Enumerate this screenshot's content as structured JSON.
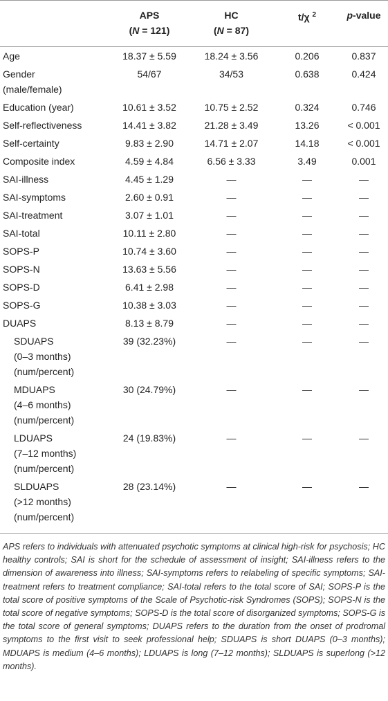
{
  "header": {
    "aps": {
      "name": "APS",
      "open": "(",
      "italic": "N",
      "rest": " = 121)"
    },
    "hc": {
      "name": "HC",
      "open": "(",
      "italic": "N",
      "rest": " = 87)"
    },
    "t": {
      "text": "t/χ",
      "sup": "2"
    },
    "p": {
      "italic": "p",
      "text": "-value"
    }
  },
  "table": {
    "rows": [
      {
        "label": [
          "Age"
        ],
        "aps": "18.37 ± 5.59",
        "hc": "18.24 ± 3.56",
        "t": "0.206",
        "p": "0.837"
      },
      {
        "label": [
          "Gender",
          "(male/female)"
        ],
        "aps": "54/67",
        "hc": "34/53",
        "t": "0.638",
        "p": "0.424"
      },
      {
        "label": [
          "Education (year)"
        ],
        "aps": "10.61 ± 3.52",
        "hc": "10.75 ± 2.52",
        "t": "0.324",
        "p": "0.746"
      },
      {
        "label": [
          "Self-reflectiveness"
        ],
        "aps": "14.41 ± 3.82",
        "hc": "21.28 ± 3.49",
        "t": "13.26",
        "p": "< 0.001"
      },
      {
        "label": [
          "Self-certainty"
        ],
        "aps": "9.83 ± 2.90",
        "hc": "14.71 ± 2.07",
        "t": "14.18",
        "p": "< 0.001"
      },
      {
        "label": [
          "Composite index"
        ],
        "aps": "4.59 ± 4.84",
        "hc": "6.56 ± 3.33",
        "t": "3.49",
        "p": "0.001"
      },
      {
        "label": [
          "SAI-illness"
        ],
        "aps": "4.45 ± 1.29",
        "hc": "—",
        "t": "—",
        "p": "—"
      },
      {
        "label": [
          "SAI-symptoms"
        ],
        "aps": "2.60 ± 0.91",
        "hc": "—",
        "t": "—",
        "p": "—"
      },
      {
        "label": [
          "SAI-treatment"
        ],
        "aps": "3.07 ± 1.01",
        "hc": "—",
        "t": "—",
        "p": "—"
      },
      {
        "label": [
          "SAI-total"
        ],
        "aps": "10.11 ± 2.80",
        "hc": "—",
        "t": "—",
        "p": "—"
      },
      {
        "label": [
          "SOPS-P"
        ],
        "aps": "10.74 ± 3.60",
        "hc": "—",
        "t": "—",
        "p": "—"
      },
      {
        "label": [
          "SOPS-N"
        ],
        "aps": "13.63 ± 5.56",
        "hc": "—",
        "t": "—",
        "p": "—"
      },
      {
        "label": [
          "SOPS-D"
        ],
        "aps": "6.41 ± 2.98",
        "hc": "—",
        "t": "—",
        "p": "—"
      },
      {
        "label": [
          "SOPS-G"
        ],
        "aps": "10.38 ± 3.03",
        "hc": "—",
        "t": "—",
        "p": "—"
      },
      {
        "label": [
          "DUAPS"
        ],
        "aps": "8.13 ± 8.79",
        "hc": "—",
        "t": "—",
        "p": "—"
      },
      {
        "label": [
          "SDUAPS",
          "(0–3 months)",
          "(num/percent)"
        ],
        "indent": true,
        "aps": "39 (32.23%)",
        "hc": "—",
        "t": "—",
        "p": "—"
      },
      {
        "label": [
          "MDUAPS",
          "(4–6 months)",
          "(num/percent)"
        ],
        "indent": true,
        "aps": "30 (24.79%)",
        "hc": "—",
        "t": "—",
        "p": "—"
      },
      {
        "label": [
          "LDUAPS",
          "(7–12 months)",
          "(num/percent)"
        ],
        "indent": true,
        "aps": "24 (19.83%)",
        "hc": "—",
        "t": "—",
        "p": "—"
      },
      {
        "label": [
          "SLDUAPS",
          "(>12 months)",
          "(num/percent)"
        ],
        "indent": true,
        "aps": "28 (23.14%)",
        "hc": "—",
        "t": "—",
        "p": "—"
      }
    ]
  },
  "footnote": "APS refers to individuals with attenuated psychotic symptoms at clinical high-risk for psychosis; HC healthy controls; SAI is short for the schedule of assessment of insight; SAI-illness refers to the dimension of awareness into illness; SAI-symptoms refers to relabeling of specific symptoms; SAI-treatment refers to treatment compliance; SAI-total refers to the total score of SAI; SOPS-P is the total score of positive symptoms of the Scale of Psychotic-risk Syndromes (SOPS); SOPS-N is the total score of negative symptoms; SOPS-D is the total score of disorganized symptoms; SOPS-G is the total score of general symptoms; DUAPS refers to the duration from the onset of prodromal symptoms to the first visit to seek professional help; SDUAPS is short DUAPS (0–3 months); MDUAPS is medium (4–6 months); LDUAPS is long (7–12 months); SLDUAPS is superlong (>12 months)."
}
